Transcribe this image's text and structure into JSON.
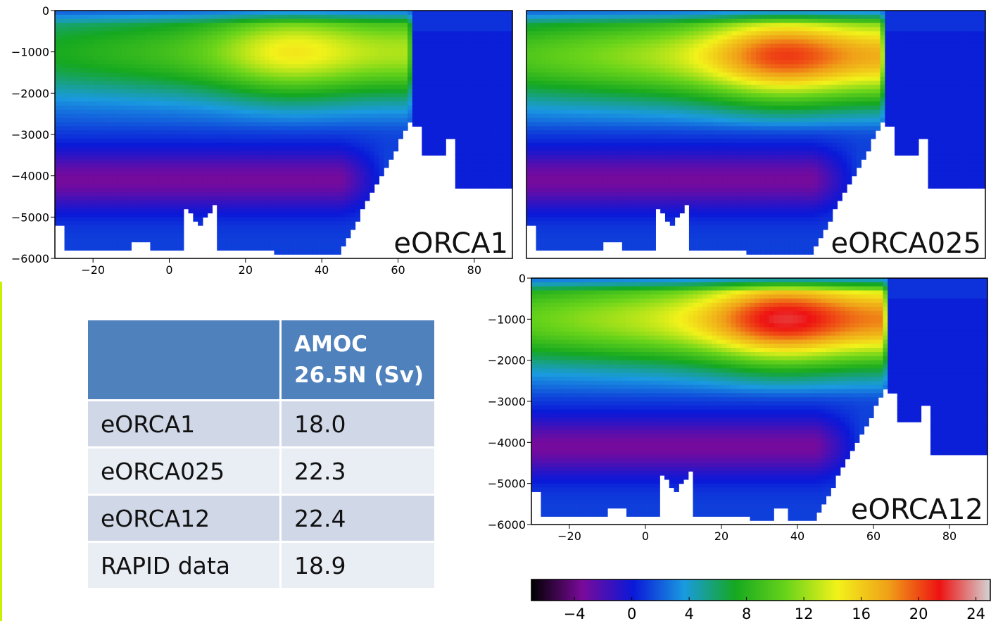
{
  "chart_data": [
    {
      "type": "heatmap",
      "panel_label": "eORCA1",
      "x_ticks": [
        -20,
        0,
        20,
        40,
        60,
        80
      ],
      "y_ticks": [
        0,
        -1000,
        -2000,
        -3000,
        -4000,
        -5000,
        -6000
      ],
      "xlim": [
        -30,
        90
      ],
      "ylim": [
        -6000,
        0
      ],
      "max_value": 16,
      "max_location": [
        30,
        -1000
      ]
    },
    {
      "type": "heatmap",
      "panel_label": "eORCA025",
      "x_ticks": [
        -20,
        0,
        20,
        40,
        60,
        80
      ],
      "y_ticks": [
        0,
        -1000,
        -2000,
        -3000,
        -4000,
        -5000,
        -6000
      ],
      "xlim": [
        -30,
        90
      ],
      "ylim": [
        -6000,
        0
      ],
      "max_value": 22,
      "max_location": [
        35,
        -1100
      ]
    },
    {
      "type": "heatmap",
      "panel_label": "eORCA12",
      "x_ticks": [
        -20,
        0,
        20,
        40,
        60,
        80
      ],
      "y_ticks": [
        0,
        -1000,
        -2000,
        -3000,
        -4000,
        -5000,
        -6000
      ],
      "xlim": [
        -30,
        90
      ],
      "ylim": [
        -6000,
        0
      ],
      "max_value": 24,
      "max_location": [
        34,
        -1000
      ]
    },
    {
      "type": "colorbar",
      "ticks": [
        -4,
        0,
        4,
        8,
        12,
        16,
        20,
        24
      ],
      "range": [
        -7,
        25
      ],
      "colors": [
        "#000000",
        "#7a0a9a",
        "#0a18d8",
        "#1a9ae0",
        "#15a820",
        "#6ad41a",
        "#f2f21a",
        "#f0a018",
        "#ee1212",
        "#d4d4d4"
      ]
    },
    {
      "type": "table",
      "header": [
        "",
        "AMOC 26.5N (Sv)"
      ],
      "rows": [
        [
          "eORCA1",
          "18.0"
        ],
        [
          "eORCA025",
          "22.3"
        ],
        [
          "eORCA12",
          "22.4"
        ],
        [
          "RAPID data",
          "18.9"
        ]
      ]
    }
  ],
  "header_line1": "AMOC",
  "header_line2": "26.5N (Sv)",
  "colors": {
    "table_header": "#4f81bd",
    "table_row_odd": "#d0d8e8",
    "table_row_even": "#e9edf4",
    "accent_line": "#c8f000"
  }
}
